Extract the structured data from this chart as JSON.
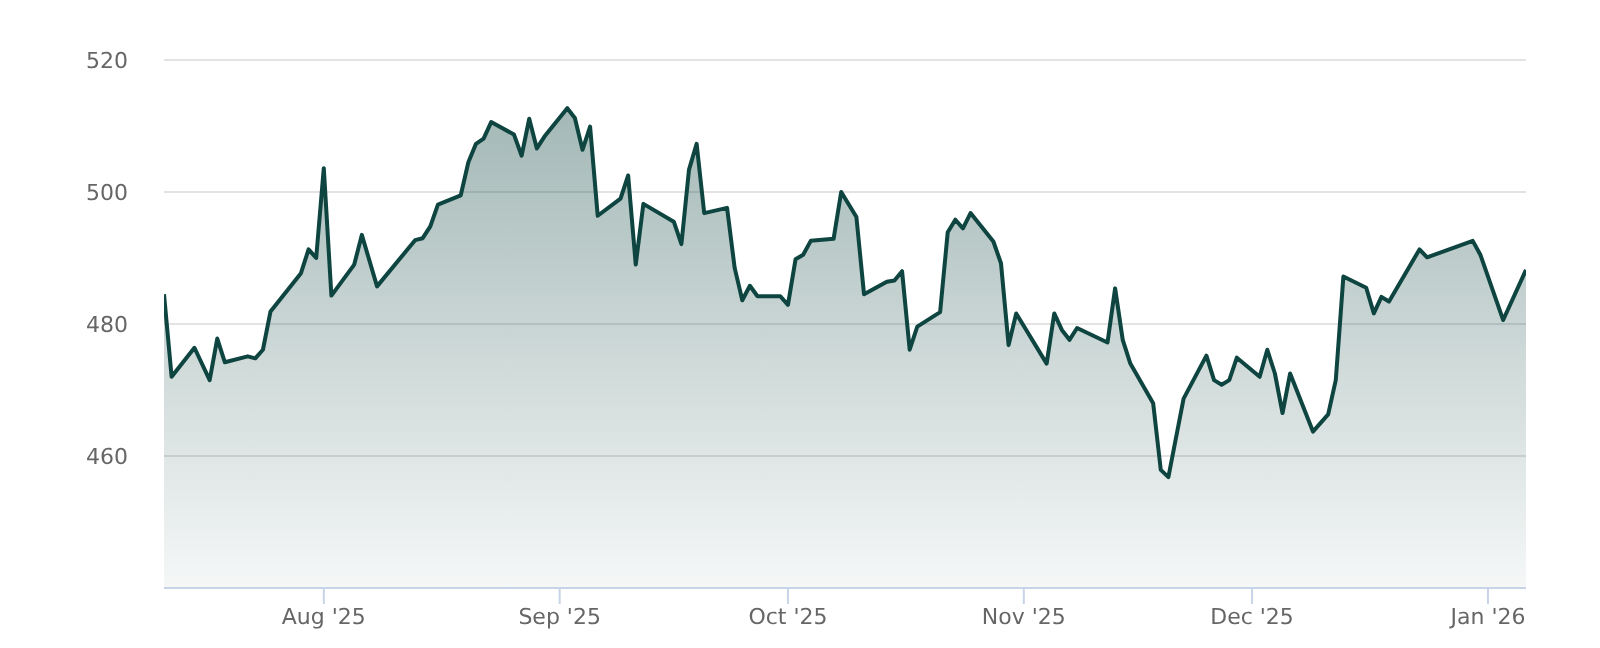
{
  "chart_data": {
    "type": "area",
    "grid": "y",
    "x": [
      "2025-07-11",
      "2025-07-12",
      "2025-07-15",
      "2025-07-17",
      "2025-07-18",
      "2025-07-19",
      "2025-07-22",
      "2025-07-23",
      "2025-07-24",
      "2025-07-25",
      "2025-07-29",
      "2025-07-30",
      "2025-07-31",
      "2025-08-01",
      "2025-08-02",
      "2025-08-05",
      "2025-08-06",
      "2025-08-08",
      "2025-08-13",
      "2025-08-14",
      "2025-08-15",
      "2025-08-16",
      "2025-08-19",
      "2025-08-20",
      "2025-08-21",
      "2025-08-22",
      "2025-08-23",
      "2025-08-26",
      "2025-08-27",
      "2025-08-28",
      "2025-08-29",
      "2025-08-30",
      "2025-09-02",
      "2025-09-03",
      "2025-09-04",
      "2025-09-05",
      "2025-09-06",
      "2025-09-09",
      "2025-09-10",
      "2025-09-11",
      "2025-09-12",
      "2025-09-16",
      "2025-09-17",
      "2025-09-18",
      "2025-09-19",
      "2025-09-20",
      "2025-09-23",
      "2025-09-24",
      "2025-09-25",
      "2025-09-26",
      "2025-09-27",
      "2025-09-30",
      "2025-10-01",
      "2025-10-02",
      "2025-10-03",
      "2025-10-04",
      "2025-10-07",
      "2025-10-08",
      "2025-10-10",
      "2025-10-11",
      "2025-10-14",
      "2025-10-15",
      "2025-10-16",
      "2025-10-17",
      "2025-10-18",
      "2025-10-21",
      "2025-10-22",
      "2025-10-23",
      "2025-10-24",
      "2025-10-25",
      "2025-10-28",
      "2025-10-29",
      "2025-10-30",
      "2025-10-31",
      "2025-11-04",
      "2025-11-05",
      "2025-11-06",
      "2025-11-07",
      "2025-11-08",
      "2025-11-12",
      "2025-11-13",
      "2025-11-14",
      "2025-11-15",
      "2025-11-18",
      "2025-11-19",
      "2025-11-20",
      "2025-11-22",
      "2025-11-25",
      "2025-11-26",
      "2025-11-27",
      "2025-11-28",
      "2025-11-29",
      "2025-12-02",
      "2025-12-03",
      "2025-12-04",
      "2025-12-05",
      "2025-12-06",
      "2025-12-09",
      "2025-12-11",
      "2025-12-12",
      "2025-12-13",
      "2025-12-16",
      "2025-12-17",
      "2025-12-18",
      "2025-12-19",
      "2025-12-23",
      "2025-12-24",
      "2025-12-30",
      "2025-12-31",
      "2026-01-03",
      "2026-01-06"
    ],
    "series": [
      {
        "color": "#0e4540",
        "values": [
          484.5,
          472.0,
          476.4,
          471.5,
          477.8,
          474.2,
          475.1,
          474.8,
          476.1,
          481.9,
          487.7,
          491.3,
          490.0,
          503.6,
          484.3,
          489.0,
          493.5,
          485.7,
          492.7,
          493.0,
          494.8,
          498.1,
          499.5,
          504.5,
          507.3,
          508.1,
          510.6,
          508.7,
          505.5,
          511.1,
          506.6,
          508.4,
          512.7,
          511.2,
          506.4,
          509.9,
          496.4,
          499.0,
          502.5,
          489.0,
          498.2,
          495.5,
          492.1,
          503.4,
          507.3,
          496.8,
          497.6,
          488.5,
          483.6,
          485.8,
          484.2,
          484.2,
          482.9,
          489.8,
          490.5,
          492.6,
          492.9,
          500.0,
          496.2,
          484.5,
          486.4,
          486.6,
          488.0,
          476.1,
          479.6,
          481.8,
          493.9,
          495.8,
          494.5,
          496.8,
          492.5,
          489.2,
          476.8,
          481.6,
          474.0,
          481.6,
          479.1,
          477.6,
          479.4,
          477.2,
          485.4,
          477.6,
          474.0,
          468.0,
          457.9,
          456.8,
          468.7,
          475.2,
          471.5,
          470.8,
          471.5,
          474.9,
          472.0,
          476.1,
          472.5,
          466.5,
          472.5,
          463.7,
          466.3,
          471.5,
          487.2,
          485.5,
          481.6,
          484.1,
          483.4,
          491.3,
          490.1,
          492.6,
          490.5,
          480.6,
          488.2
        ]
      }
    ],
    "xlim": [
      "2025-07-11",
      "2026-01-06"
    ],
    "xticks": [
      {
        "value": "2025-08-01",
        "label": "Aug '25"
      },
      {
        "value": "2025-09-01",
        "label": "Sep '25"
      },
      {
        "value": "2025-10-01",
        "label": "Oct '25"
      },
      {
        "value": "2025-11-01",
        "label": "Nov '25"
      },
      {
        "value": "2025-12-01",
        "label": "Dec '25"
      },
      {
        "value": "2026-01-01",
        "label": "Jan '26"
      }
    ],
    "ylim": [
      440,
      520
    ],
    "yticks": [
      460,
      480,
      500,
      520
    ]
  }
}
